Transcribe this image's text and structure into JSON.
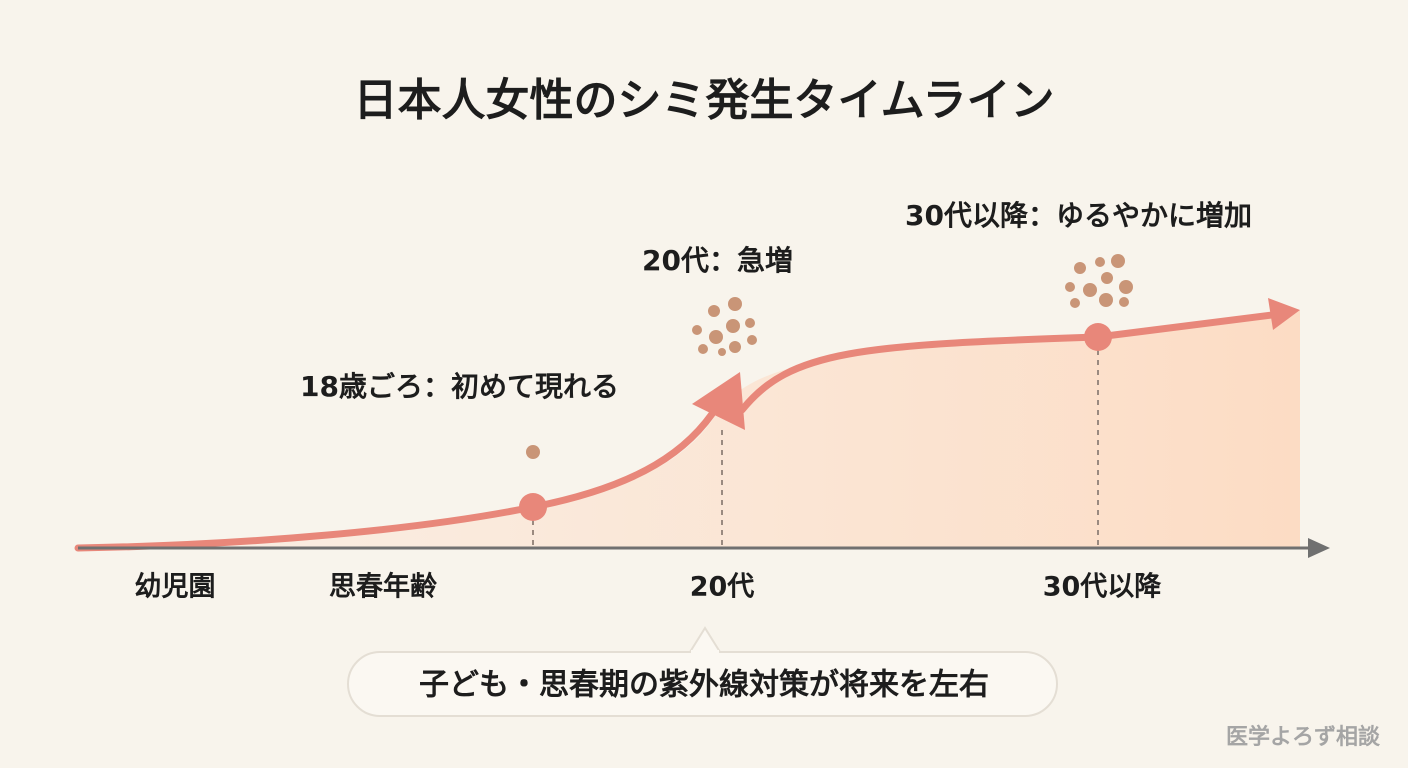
{
  "header": {
    "title": "日本人女性のシミ発生タイムライン"
  },
  "stages": [
    "幼児園",
    "思春年齢",
    "20代",
    "30代以降"
  ],
  "annotations": [
    "18歳ごろ：初めて現れる",
    "20代：急増",
    "30代以降：ゆるやかに増加"
  ],
  "callout": "子ども・思春期の紫外線対策が将来を左右",
  "footer": "医学よろず相談"
}
